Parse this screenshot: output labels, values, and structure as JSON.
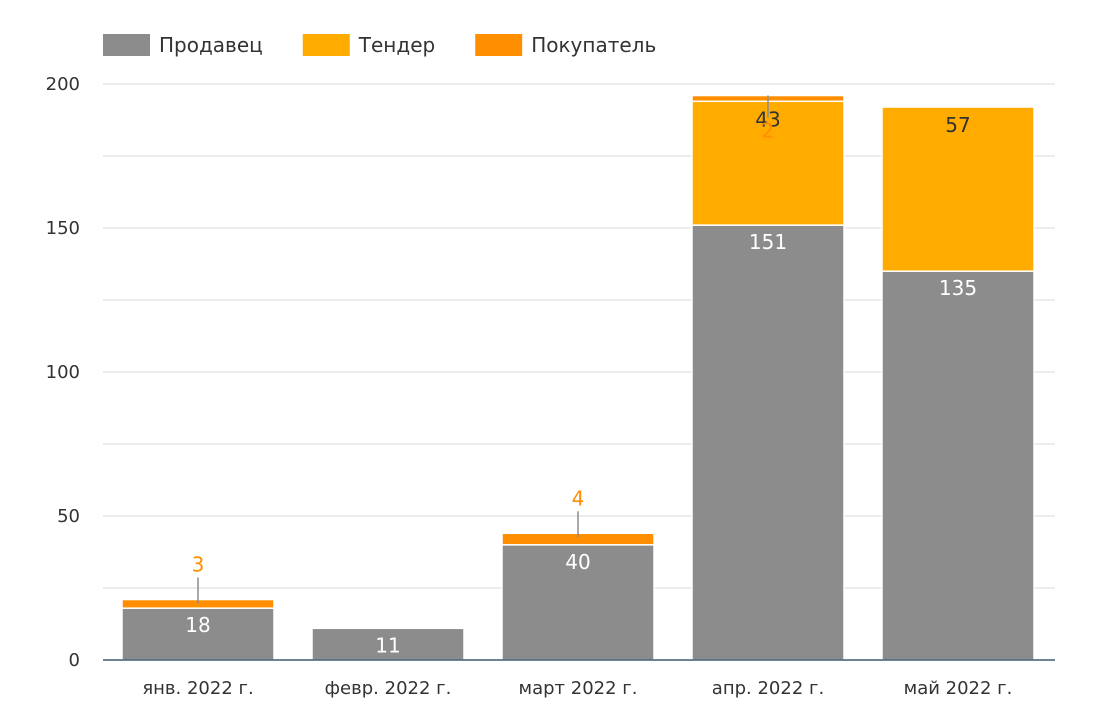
{
  "chart_data": {
    "type": "bar",
    "stacked": true,
    "title": "",
    "xlabel": "",
    "ylabel": "",
    "ylim": [
      0,
      200
    ],
    "y_ticks": [
      0,
      50,
      100,
      150,
      200
    ],
    "grid": true,
    "legend_position": "top-left",
    "categories": [
      "янв. 2022 г.",
      "февр. 2022 г.",
      "март 2022 г.",
      "апр. 2022 г.",
      "май 2022 г."
    ],
    "series": [
      {
        "name": "Продавец",
        "color": "#8c8c8c",
        "values": [
          18,
          11,
          40,
          151,
          135
        ],
        "labels": [
          "18",
          "11",
          "40",
          "151",
          "135"
        ]
      },
      {
        "name": "Тендер",
        "color": "#ffab00",
        "values": [
          0,
          0,
          0,
          43,
          57
        ],
        "labels": [
          "",
          "",
          "",
          "43",
          "57"
        ]
      },
      {
        "name": "Покупатель",
        "color": "#ff8f00",
        "values": [
          3,
          0,
          4,
          2,
          0
        ],
        "labels": [
          "3",
          "",
          "4",
          "2",
          ""
        ]
      }
    ]
  }
}
